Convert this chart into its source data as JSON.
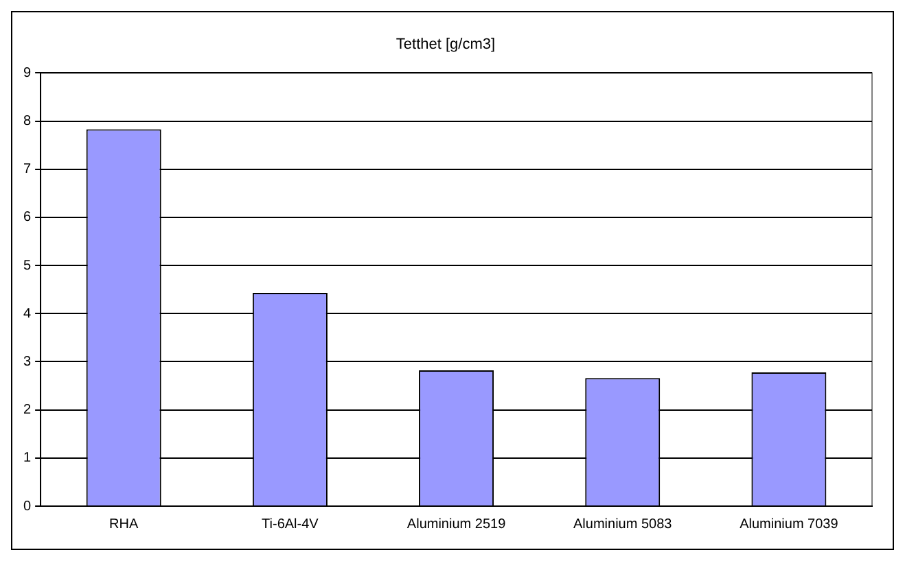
{
  "chart_data": {
    "type": "bar",
    "title": "Tetthet [g/cm3]",
    "categories": [
      "RHA",
      "Ti-6Al-4V",
      "Aluminium 2519",
      "Aluminium 5083",
      "Aluminium 7039"
    ],
    "values": [
      7.83,
      4.43,
      2.82,
      2.66,
      2.78
    ],
    "color": "#9999ff",
    "ylim": [
      0,
      9
    ],
    "yticks": [
      0,
      1,
      2,
      3,
      4,
      5,
      6,
      7,
      8,
      9
    ],
    "grid": "y",
    "legend": false
  }
}
